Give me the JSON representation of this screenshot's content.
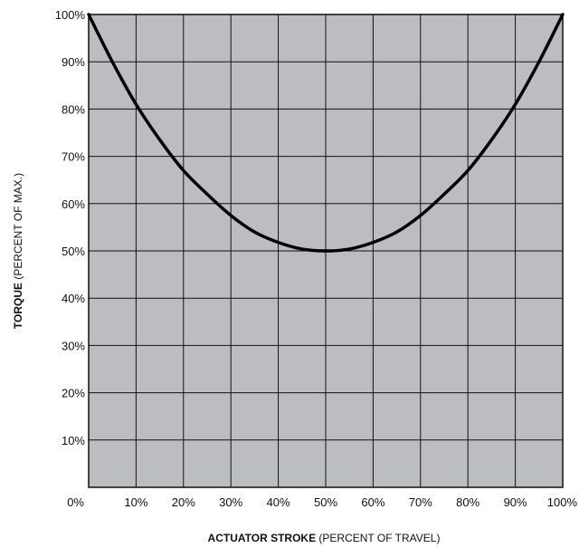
{
  "colors": {
    "plot_background": "#bcbdc0",
    "grid": "#111111",
    "curve": "#000000",
    "text": "#111111"
  },
  "chart_data": {
    "type": "line",
    "title": "",
    "xlabel_bold": "ACTUATOR STROKE",
    "xlabel_rest": " (PERCENT OF TRAVEL)",
    "ylabel_bold": "TORQUE",
    "ylabel_rest": " (PERCENT OF MAX.)",
    "xlim": [
      0,
      100
    ],
    "ylim": [
      0,
      100
    ],
    "grid": true,
    "legend": "none",
    "x_ticks": [
      0,
      10,
      20,
      30,
      40,
      50,
      60,
      70,
      80,
      90,
      100
    ],
    "x_tick_labels": [
      "0%",
      "10%",
      "20%",
      "30%",
      "40%",
      "50%",
      "60%",
      "70%",
      "80%",
      "90%",
      "100%"
    ],
    "y_ticks": [
      10,
      20,
      30,
      40,
      50,
      60,
      70,
      80,
      90,
      100
    ],
    "y_tick_labels": [
      "10%",
      "20%",
      "30%",
      "40%",
      "50%",
      "60%",
      "70%",
      "80%",
      "90%",
      "100%"
    ],
    "series": [
      {
        "x": [
          0,
          5,
          10,
          15,
          20,
          25,
          30,
          35,
          40,
          45,
          50,
          55,
          60,
          65,
          70,
          75,
          80,
          85,
          90,
          95,
          100
        ],
        "y": [
          100,
          90,
          81,
          73.5,
          67,
          62,
          57.5,
          54,
          51.8,
          50.4,
          50,
          50.4,
          51.8,
          54,
          57.5,
          62,
          67,
          73.5,
          81,
          90,
          100
        ]
      }
    ]
  }
}
